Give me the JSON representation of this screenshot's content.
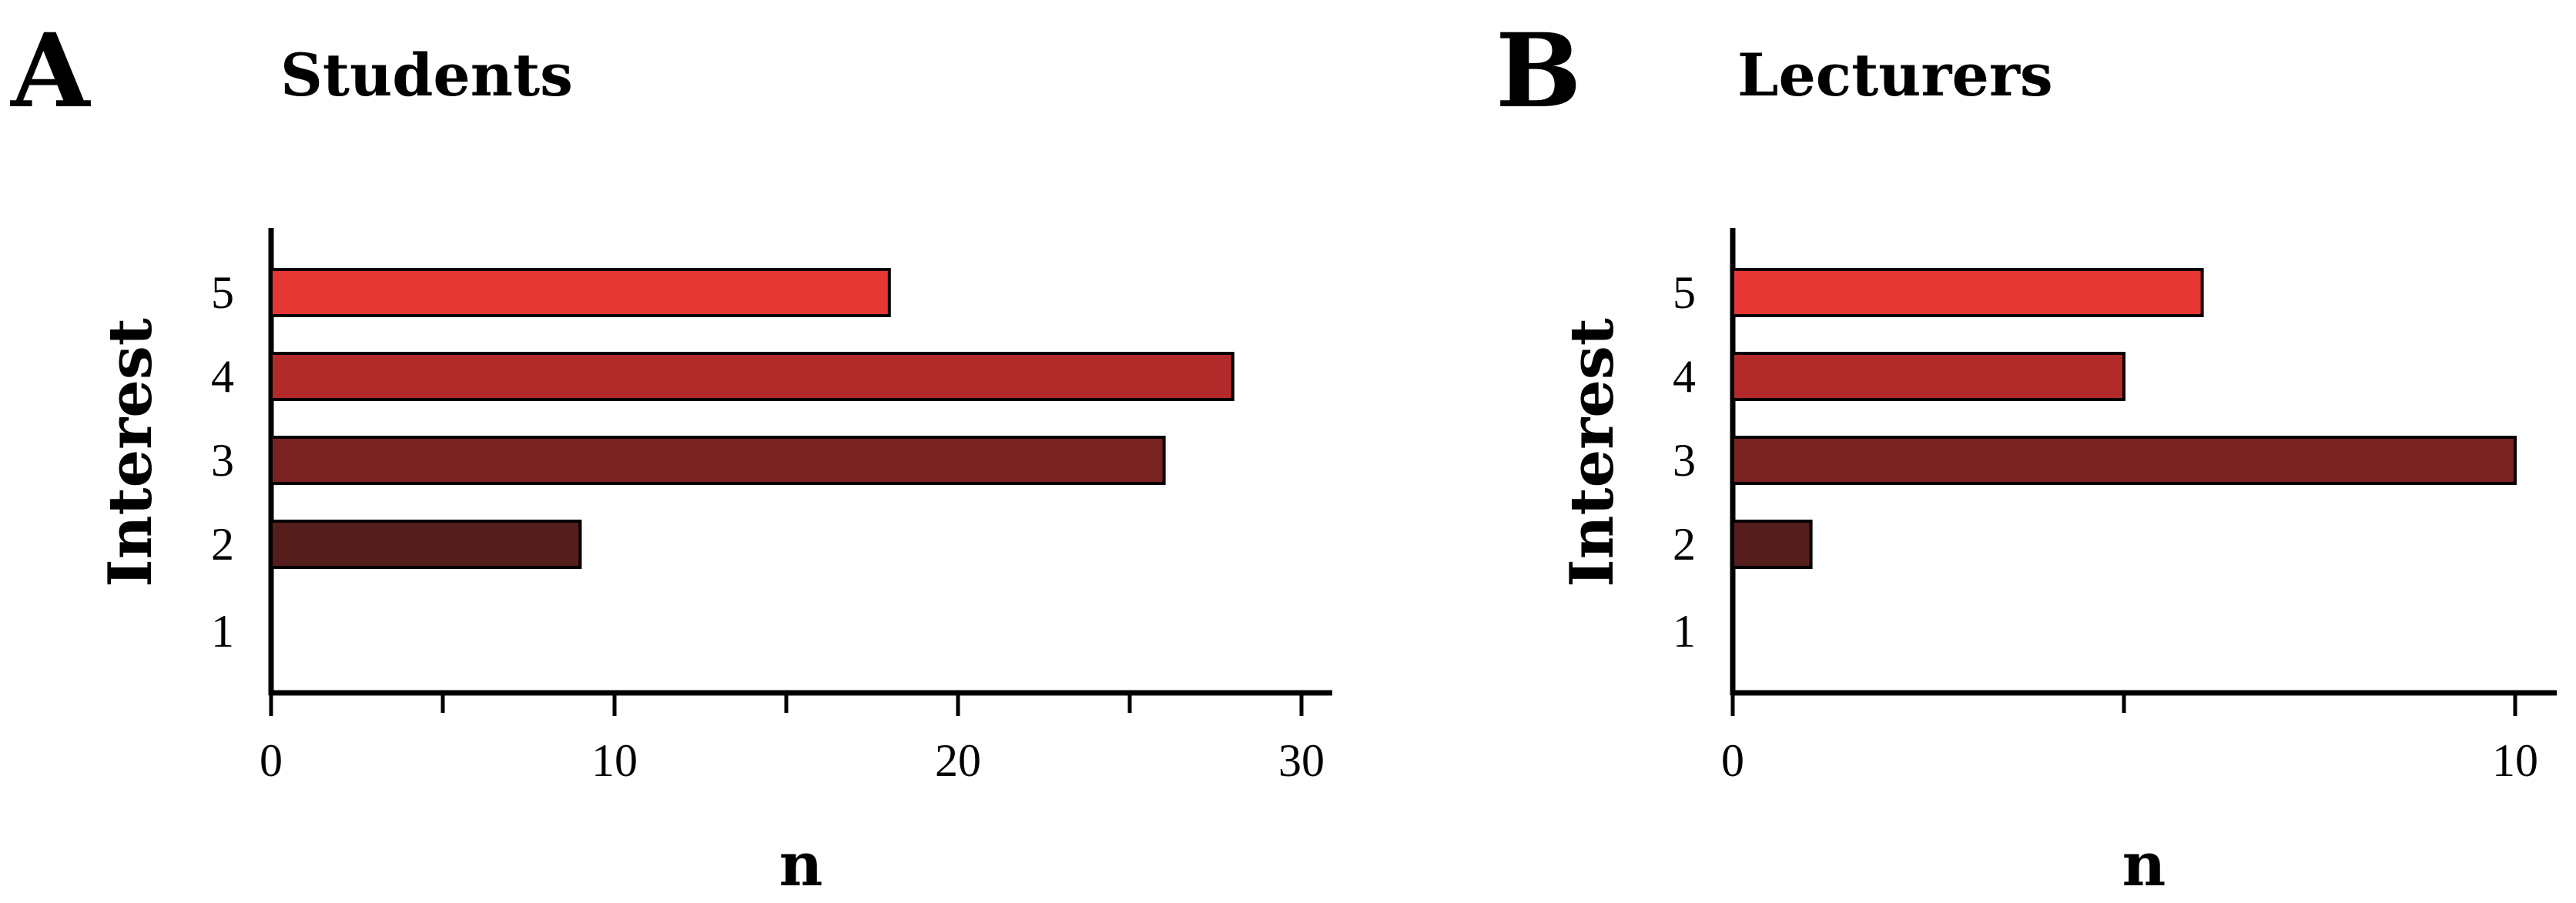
{
  "chart_data": [
    {
      "type": "bar",
      "orientation": "horizontal",
      "panel_label": "A",
      "title": "Students",
      "xlabel": "n",
      "ylabel": "Interest",
      "categories": [
        "1",
        "2",
        "3",
        "4",
        "5"
      ],
      "values": [
        0,
        9,
        26,
        28,
        18
      ],
      "xlim": [
        0,
        31
      ],
      "xticks": [
        0,
        10,
        20,
        30
      ],
      "minor_xticks": [
        5,
        15,
        25
      ],
      "colors": [
        "#4d1a1a",
        "#561d1d",
        "#7a2222",
        "#b32a2a",
        "#e63734"
      ]
    },
    {
      "type": "bar",
      "orientation": "horizontal",
      "panel_label": "B",
      "title": "Lecturers",
      "xlabel": "n",
      "ylabel": "Interest",
      "categories": [
        "1",
        "2",
        "3",
        "4",
        "5"
      ],
      "values": [
        0,
        1,
        10,
        5,
        6
      ],
      "xlim": [
        0,
        10.6
      ],
      "xticks": [
        0,
        10
      ],
      "minor_xticks": [
        5
      ],
      "colors": [
        "#4d1a1a",
        "#561d1d",
        "#7a2222",
        "#b32a2a",
        "#e63734"
      ]
    }
  ]
}
